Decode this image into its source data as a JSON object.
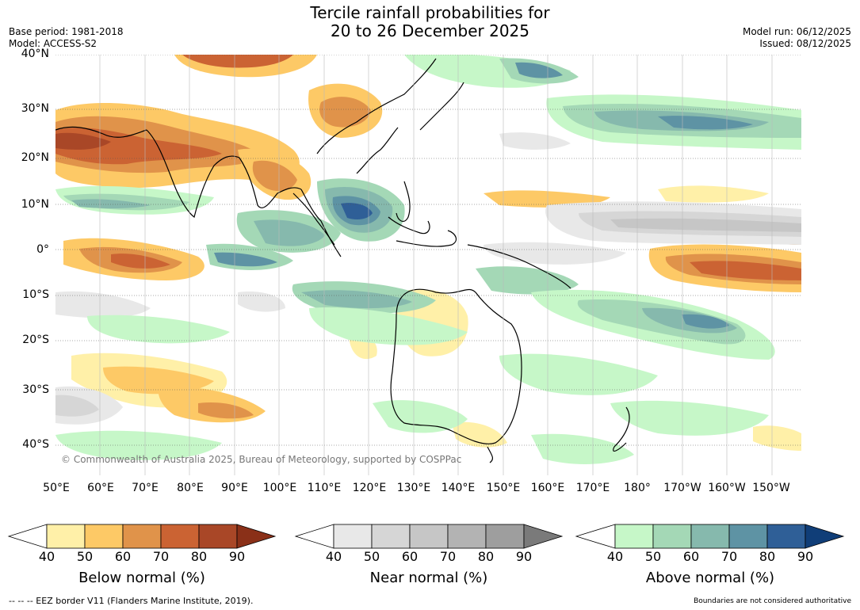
{
  "title": {
    "line1": "Tercile rainfall probabilities for",
    "line2": "20 to 26 December 2025"
  },
  "meta": {
    "base_period": "Base period: 1981-2018",
    "model": "Model: ACCESS-S2",
    "model_run": "Model run: 06/12/2025",
    "issued": "Issued: 08/12/2025"
  },
  "map": {
    "lat_labels": [
      "40°N",
      "30°N",
      "20°N",
      "10°N",
      "0°",
      "10°S",
      "20°S",
      "30°S",
      "40°S"
    ],
    "lon_labels": [
      "50°E",
      "60°E",
      "70°E",
      "80°E",
      "90°E",
      "100°E",
      "110°E",
      "120°E",
      "130°E",
      "140°E",
      "150°E",
      "160°E",
      "170°E",
      "180°",
      "170°W",
      "160°W",
      "150°W"
    ],
    "copyright": "© Commonwealth of Australia 2025, Bureau of Meteorology, supported by COSPPac",
    "colors": {
      "below": [
        "#fff0a8",
        "#fdc966",
        "#e0934a",
        "#cb6333",
        "#a94727",
        "#8a3018"
      ],
      "near": [
        "#e8e8e8",
        "#d6d6d6",
        "#c6c6c6",
        "#b3b3b3",
        "#9e9e9e",
        "#7a7a7a"
      ],
      "above": [
        "#c6f7c8",
        "#a4d8b6",
        "#86b9ad",
        "#5e93a4",
        "#2f5f97",
        "#103e78"
      ]
    }
  },
  "legends": [
    {
      "title": "Below normal (%)",
      "ticks": [
        "40",
        "50",
        "60",
        "70",
        "80",
        "90"
      ]
    },
    {
      "title": "Near normal (%)",
      "ticks": [
        "40",
        "50",
        "60",
        "70",
        "80",
        "90"
      ]
    },
    {
      "title": "Above normal (%)",
      "ticks": [
        "40",
        "50",
        "60",
        "70",
        "80",
        "90"
      ]
    }
  ],
  "footer": {
    "eez_note": "--  --  -- EEZ border V11 (Flanders Marine Institute, 2019).",
    "disclaimer": "Boundaries are not considered authoritative"
  }
}
